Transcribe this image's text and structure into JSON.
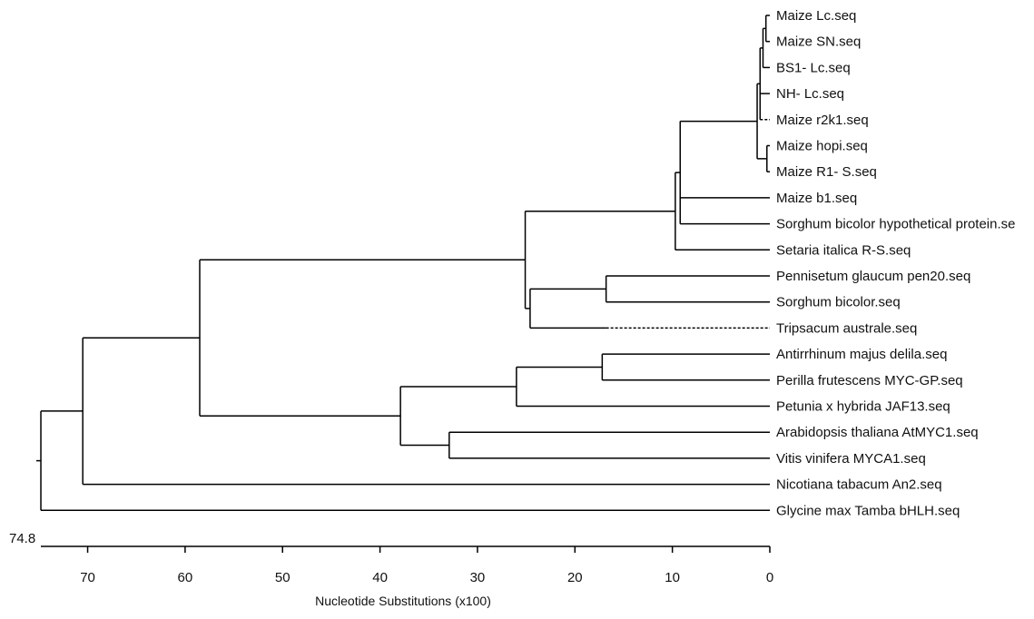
{
  "diagram": {
    "type": "phylogenetic-tree",
    "root_value_label": "74.8",
    "axis": {
      "label": "Nucleotide Substitutions (x100)",
      "ticks": [
        "70",
        "60",
        "50",
        "40",
        "30",
        "20",
        "10",
        "0"
      ],
      "tick_values": [
        70,
        60,
        50,
        40,
        30,
        20,
        10,
        0
      ],
      "range": [
        74.8,
        0
      ]
    },
    "leaves": [
      "Maize Lc.seq",
      "Maize SN.seq",
      "BS1- Lc.seq",
      "NH- Lc.seq",
      "Maize r2k1.seq",
      "Maize hopi.seq",
      "Maize R1- S.seq",
      "Maize b1.seq",
      "Sorghum bicolor hypothetical protein.se",
      "Setaria italica R-S.seq",
      "Pennisetum glaucum pen20.seq",
      "Sorghum bicolor.seq",
      "Tripsacum australe.seq",
      "Antirrhinum majus delila.seq",
      "Perilla frutescens MYC-GP.seq",
      "Petunia x hybrida JAF13.seq",
      "Arabidopsis thaliana AtMYC1.seq",
      "Vitis vinifera MYCA1.seq",
      "Nicotiana tabacum An2.seq",
      "Glycine max Tamba bHLH.seq"
    ],
    "tree": {
      "h": 74.8,
      "children": [
        {
          "h": 70.5,
          "children": [
            {
              "h": 58.5,
              "children": [
                {
                  "h": 25.1,
                  "children": [
                    {
                      "h": 9.7,
                      "children": [
                        {
                          "h": 9.2,
                          "children": [
                            {
                              "h": 1.3,
                              "children": [
                                {
                                  "h": 1.0,
                                  "children": [
                                    {
                                      "h": 0.7,
                                      "children": [
                                        {
                                          "h": 0.4,
                                          "children": [
                                            {
                                              "leaf": 0
                                            },
                                            {
                                              "leaf": 1
                                            }
                                          ]
                                        },
                                        {
                                          "leaf": 2
                                        }
                                      ]
                                    },
                                    {
                                      "leaf": 3
                                    },
                                    {
                                      "leaf": 4,
                                      "dashed": true
                                    }
                                  ]
                                },
                                {
                                  "h": 0.3,
                                  "children": [
                                    {
                                      "leaf": 5
                                    },
                                    {
                                      "leaf": 6
                                    }
                                  ]
                                }
                              ]
                            },
                            {
                              "leaf": 7
                            },
                            {
                              "leaf": 8
                            }
                          ]
                        },
                        {
                          "leaf": 9
                        }
                      ]
                    },
                    {
                      "h": 24.6,
                      "children": [
                        {
                          "h": 16.8,
                          "children": [
                            {
                              "leaf": 10
                            },
                            {
                              "leaf": 11
                            }
                          ]
                        },
                        {
                          "leaf": 12,
                          "dashed": true,
                          "dash_from": 16.8
                        }
                      ]
                    }
                  ]
                },
                {
                  "h": 37.9,
                  "children": [
                    {
                      "h": 26.0,
                      "children": [
                        {
                          "h": 17.2,
                          "children": [
                            {
                              "leaf": 13
                            },
                            {
                              "leaf": 14
                            }
                          ]
                        },
                        {
                          "leaf": 15
                        }
                      ]
                    },
                    {
                      "h": 32.9,
                      "children": [
                        {
                          "leaf": 16
                        },
                        {
                          "leaf": 17
                        }
                      ]
                    }
                  ]
                }
              ]
            },
            {
              "leaf": 18
            }
          ]
        },
        {
          "leaf": 19
        }
      ]
    }
  }
}
